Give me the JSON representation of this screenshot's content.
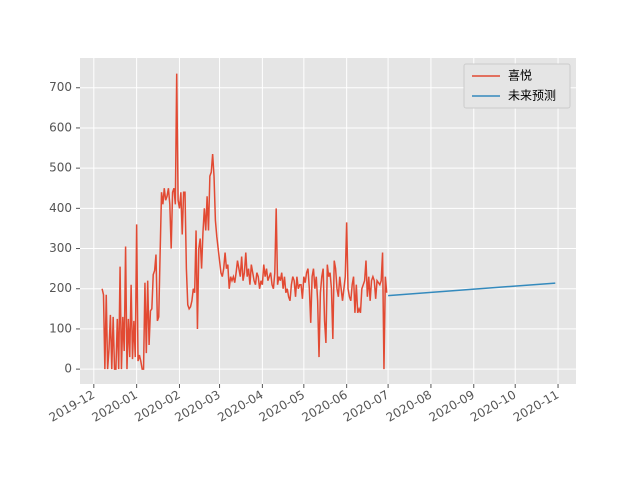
{
  "chart_data": {
    "type": "line",
    "xlim": [
      "2019-11-21",
      "2020-11-14"
    ],
    "ylim": [
      -37,
      774
    ],
    "yticks": [
      0,
      100,
      200,
      300,
      400,
      500,
      600,
      700
    ],
    "xticks": [
      {
        "value": "2019-12-01",
        "label": "2019-12"
      },
      {
        "value": "2020-01-01",
        "label": "2020-01"
      },
      {
        "value": "2020-02-01",
        "label": "2020-02"
      },
      {
        "value": "2020-03-01",
        "label": "2020-03"
      },
      {
        "value": "2020-04-01",
        "label": "2020-04"
      },
      {
        "value": "2020-05-01",
        "label": "2020-05"
      },
      {
        "value": "2020-06-01",
        "label": "2020-06"
      },
      {
        "value": "2020-07-01",
        "label": "2020-07"
      },
      {
        "value": "2020-08-01",
        "label": "2020-08"
      },
      {
        "value": "2020-09-01",
        "label": "2020-09"
      },
      {
        "value": "2020-10-01",
        "label": "2020-10"
      },
      {
        "value": "2020-11-01",
        "label": "2020-11"
      }
    ],
    "grid": true,
    "legend": "upper right",
    "series": [
      {
        "name": "喜悦",
        "color": "#e24a33",
        "x": [
          "2019-12-07",
          "2019-12-08",
          "2019-12-09",
          "2019-12-10",
          "2019-12-11",
          "2019-12-12",
          "2019-12-13",
          "2019-12-14",
          "2019-12-15",
          "2019-12-16",
          "2019-12-17",
          "2019-12-18",
          "2019-12-19",
          "2019-12-20",
          "2019-12-21",
          "2019-12-22",
          "2019-12-23",
          "2019-12-24",
          "2019-12-25",
          "2019-12-26",
          "2019-12-27",
          "2019-12-28",
          "2019-12-29",
          "2019-12-30",
          "2019-12-31",
          "2020-01-01",
          "2020-01-02",
          "2020-01-03",
          "2020-01-04",
          "2020-01-05",
          "2020-01-06",
          "2020-01-07",
          "2020-01-08",
          "2020-01-09",
          "2020-01-10",
          "2020-01-11",
          "2020-01-12",
          "2020-01-13",
          "2020-01-14",
          "2020-01-15",
          "2020-01-16",
          "2020-01-17",
          "2020-01-18",
          "2020-01-19",
          "2020-01-20",
          "2020-01-21",
          "2020-01-22",
          "2020-01-23",
          "2020-01-24",
          "2020-01-25",
          "2020-01-26",
          "2020-01-27",
          "2020-01-28",
          "2020-01-29",
          "2020-01-30",
          "2020-01-31",
          "2020-02-01",
          "2020-02-02",
          "2020-02-03",
          "2020-02-04",
          "2020-02-05",
          "2020-02-06",
          "2020-02-07",
          "2020-02-08",
          "2020-02-09",
          "2020-02-10",
          "2020-02-11",
          "2020-02-12",
          "2020-02-13",
          "2020-02-14",
          "2020-02-15",
          "2020-02-16",
          "2020-02-17",
          "2020-02-18",
          "2020-02-19",
          "2020-02-20",
          "2020-02-21",
          "2020-02-22",
          "2020-02-23",
          "2020-02-24",
          "2020-02-25",
          "2020-02-26",
          "2020-02-27",
          "2020-02-28",
          "2020-02-29",
          "2020-03-01",
          "2020-03-02",
          "2020-03-03",
          "2020-03-04",
          "2020-03-05",
          "2020-03-06",
          "2020-03-07",
          "2020-03-08",
          "2020-03-09",
          "2020-03-10",
          "2020-03-11",
          "2020-03-12",
          "2020-03-13",
          "2020-03-14",
          "2020-03-15",
          "2020-03-16",
          "2020-03-17",
          "2020-03-18",
          "2020-03-19",
          "2020-03-20",
          "2020-03-21",
          "2020-03-22",
          "2020-03-23",
          "2020-03-24",
          "2020-03-25",
          "2020-03-26",
          "2020-03-27",
          "2020-03-28",
          "2020-03-29",
          "2020-03-30",
          "2020-03-31",
          "2020-04-01",
          "2020-04-02",
          "2020-04-03",
          "2020-04-04",
          "2020-04-05",
          "2020-04-06",
          "2020-04-07",
          "2020-04-08",
          "2020-04-09",
          "2020-04-10",
          "2020-04-11",
          "2020-04-12",
          "2020-04-13",
          "2020-04-14",
          "2020-04-15",
          "2020-04-16",
          "2020-04-17",
          "2020-04-18",
          "2020-04-19",
          "2020-04-20",
          "2020-04-21",
          "2020-04-22",
          "2020-04-23",
          "2020-04-24",
          "2020-04-25",
          "2020-04-26",
          "2020-04-27",
          "2020-04-28",
          "2020-04-29",
          "2020-04-30",
          "2020-05-01",
          "2020-05-02",
          "2020-05-03",
          "2020-05-04",
          "2020-05-05",
          "2020-05-06",
          "2020-05-07",
          "2020-05-08",
          "2020-05-09",
          "2020-05-10",
          "2020-05-11",
          "2020-05-12",
          "2020-05-13",
          "2020-05-14",
          "2020-05-15",
          "2020-05-16",
          "2020-05-17",
          "2020-05-18",
          "2020-05-19",
          "2020-05-20",
          "2020-05-21",
          "2020-05-22",
          "2020-05-23",
          "2020-05-24",
          "2020-05-25",
          "2020-05-26",
          "2020-05-27",
          "2020-05-28",
          "2020-05-29",
          "2020-05-30",
          "2020-05-31",
          "2020-06-01",
          "2020-06-02",
          "2020-06-03",
          "2020-06-04",
          "2020-06-05",
          "2020-06-06",
          "2020-06-07",
          "2020-06-08",
          "2020-06-09",
          "2020-06-10",
          "2020-06-11",
          "2020-06-12",
          "2020-06-13",
          "2020-06-14",
          "2020-06-15",
          "2020-06-16",
          "2020-06-17",
          "2020-06-18",
          "2020-06-19",
          "2020-06-20",
          "2020-06-21",
          "2020-06-22",
          "2020-06-23",
          "2020-06-24",
          "2020-06-25",
          "2020-06-26",
          "2020-06-27",
          "2020-06-28",
          "2020-06-29",
          "2020-06-30"
        ],
        "values": [
          200,
          185,
          0,
          185,
          0,
          50,
          135,
          0,
          130,
          0,
          0,
          125,
          0,
          255,
          0,
          130,
          45,
          305,
          0,
          125,
          30,
          210,
          25,
          120,
          30,
          360,
          20,
          35,
          20,
          0,
          0,
          215,
          40,
          220,
          60,
          145,
          150,
          235,
          245,
          285,
          120,
          130,
          290,
          440,
          410,
          450,
          420,
          430,
          450,
          410,
          300,
          440,
          450,
          410,
          735,
          420,
          400,
          440,
          335,
          440,
          440,
          250,
          160,
          150,
          155,
          170,
          200,
          190,
          345,
          100,
          300,
          325,
          250,
          340,
          400,
          345,
          430,
          345,
          480,
          490,
          535,
          480,
          370,
          330,
          300,
          270,
          240,
          230,
          250,
          290,
          250,
          260,
          200,
          230,
          220,
          230,
          215,
          240,
          270,
          250,
          230,
          280,
          220,
          240,
          290,
          230,
          250,
          210,
          260,
          240,
          220,
          210,
          240,
          230,
          200,
          220,
          210,
          260,
          230,
          250,
          220,
          230,
          240,
          210,
          200,
          240,
          400,
          210,
          230,
          220,
          240,
          200,
          230,
          190,
          200,
          180,
          170,
          210,
          230,
          220,
          180,
          230,
          200,
          210,
          210,
          175,
          230,
          215,
          240,
          250,
          200,
          115,
          230,
          250,
          200,
          230,
          170,
          30,
          190,
          230,
          250,
          120,
          65,
          260,
          230,
          240,
          200,
          75,
          270,
          250,
          200,
          180,
          230,
          200,
          170,
          200,
          230,
          365,
          200,
          180,
          170,
          210,
          230,
          140,
          210,
          140,
          150,
          140,
          200,
          210,
          220,
          270,
          180,
          230,
          170,
          220,
          230,
          220,
          175,
          220,
          215,
          210,
          220,
          290,
          0,
          230,
          190
        ]
      },
      {
        "name": "未来预测",
        "color": "#348abd",
        "x": [
          "2020-07-01",
          "2020-10-30"
        ],
        "values": [
          183,
          214
        ]
      }
    ]
  }
}
